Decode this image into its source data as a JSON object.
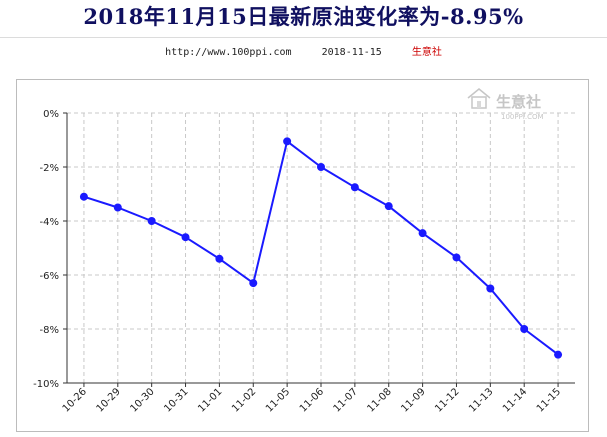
{
  "header": {
    "title": "2018年11月15日最新原油变化率为-8.95%",
    "url": "http://www.100ppi.com",
    "date": "2018-11-15",
    "brand": "生意社"
  },
  "watermark": {
    "text": "生意社",
    "url": "100PPI.COM"
  },
  "colors": {
    "line": "#1a1aff",
    "grid": "#c8c8c8",
    "title": "#101060",
    "brand": "#cc0000"
  },
  "chart_data": {
    "type": "line",
    "title": "",
    "xlabel": "",
    "ylabel": "",
    "categories": [
      "10-26",
      "10-29",
      "10-30",
      "10-31",
      "11-01",
      "11-02",
      "11-05",
      "11-06",
      "11-07",
      "11-08",
      "11-09",
      "11-12",
      "11-13",
      "11-14",
      "11-15"
    ],
    "series": [
      {
        "values": [
          -3.1,
          -3.5,
          -4.0,
          -4.6,
          -5.4,
          -6.3,
          -1.05,
          -2.0,
          -2.75,
          -3.45,
          -4.45,
          -5.35,
          -6.5,
          -8.0,
          -8.95
        ]
      }
    ],
    "ylim": [
      -10,
      0
    ],
    "yticks": [
      0,
      -2,
      -4,
      -6,
      -8,
      -10
    ],
    "ytick_labels": [
      "0%",
      "-2%",
      "-4%",
      "-6%",
      "-8%",
      "-10%"
    ],
    "grid": true,
    "legend": "none"
  }
}
